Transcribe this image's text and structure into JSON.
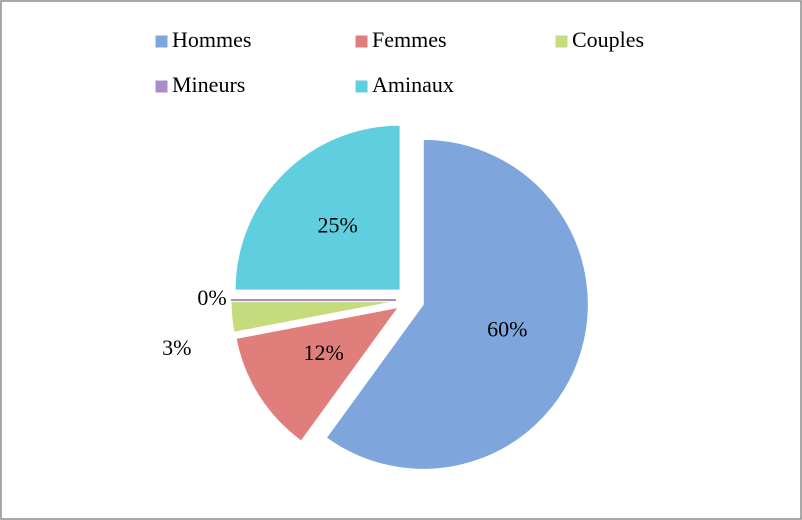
{
  "chart_data": {
    "type": "pie",
    "categories": [
      "Hommes",
      "Femmes",
      "Couples",
      "Mineurs",
      "Aminaux"
    ],
    "values": [
      60,
      12,
      3,
      0,
      25
    ],
    "value_labels": [
      "60%",
      "12%",
      "3%",
      "0%",
      "25%"
    ],
    "colors": [
      "#7fa6dc",
      "#e07e7b",
      "#c6dc7c",
      "#a98cc9",
      "#5fcfe0"
    ],
    "legend": "top"
  }
}
